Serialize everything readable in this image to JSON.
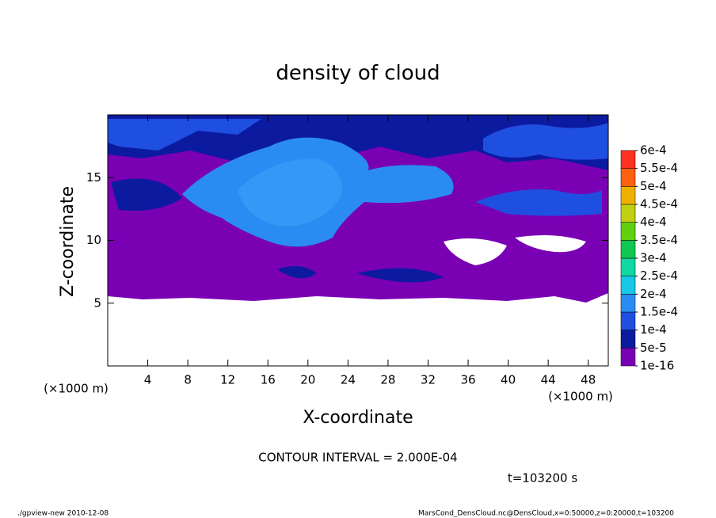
{
  "chart_data": {
    "type": "contour",
    "title": "density of cloud",
    "xlabel": "X-coordinate",
    "ylabel": "Z-coordinate",
    "x_unit_label": "(×1000 m)",
    "y_unit_label": "(×1000 m)",
    "xlim": [
      0,
      50
    ],
    "ylim": [
      0,
      20
    ],
    "xticks": [
      4,
      8,
      12,
      16,
      20,
      24,
      28,
      32,
      36,
      40,
      44,
      48
    ],
    "yticks": [
      5,
      10,
      15
    ],
    "colorbar_ticks": [
      {
        "value": 1e-16,
        "label": "1e-16"
      },
      {
        "value": 5e-05,
        "label": "5e-5"
      },
      {
        "value": 0.0001,
        "label": "1e-4"
      },
      {
        "value": 0.00015,
        "label": "1.5e-4"
      },
      {
        "value": 0.0002,
        "label": "2e-4"
      },
      {
        "value": 0.00025,
        "label": "2.5e-4"
      },
      {
        "value": 0.0003,
        "label": "3e-4"
      },
      {
        "value": 0.00035,
        "label": "3.5e-4"
      },
      {
        "value": 0.0004,
        "label": "4e-4"
      },
      {
        "value": 0.00045,
        "label": "4.5e-4"
      },
      {
        "value": 0.0005,
        "label": "5e-4"
      },
      {
        "value": 0.00055,
        "label": "5.5e-4"
      },
      {
        "value": 0.0006,
        "label": "6e-4"
      }
    ],
    "colorbar_colors": [
      "#7a00b4",
      "#0c1aa0",
      "#1f4fe0",
      "#2a8cf2",
      "#18c8e8",
      "#10d8a0",
      "#10c850",
      "#60d010",
      "#c0d010",
      "#f0b000",
      "#ff6010",
      "#ff3020"
    ],
    "annotations": [
      "CONTOUR INTERVAL = 2.000E-04",
      "t=103200 s"
    ],
    "footer_left": "./gpview-new   2010-12-08",
    "footer_right": "MarsCond_DensCloud.nc@DensCloud,x=0:50000,z=0:20000,t=103200"
  }
}
